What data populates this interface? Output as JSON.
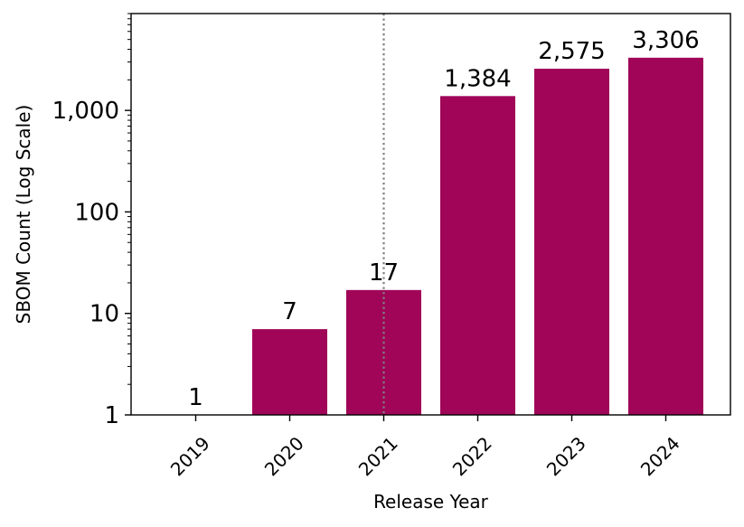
{
  "chart_data": {
    "type": "bar",
    "categories": [
      "2019",
      "2020",
      "2021",
      "2022",
      "2023",
      "2024"
    ],
    "values": [
      1,
      7,
      17,
      1384,
      2575,
      3306
    ],
    "value_labels": [
      "1",
      "7",
      "17",
      "1,384",
      "2,575",
      "3,306"
    ],
    "xlabel": "Release Year",
    "ylabel": "SBOM Count (Log Scale)",
    "y_scale": "log",
    "ylim": [
      1,
      9000
    ],
    "y_ticks": [
      {
        "value": 1,
        "label": "1"
      },
      {
        "value": 10,
        "label": "10"
      },
      {
        "value": 100,
        "label": "100"
      },
      {
        "value": 1000,
        "label": "1,000"
      }
    ],
    "reference_line": {
      "x": "2021",
      "style": "dotted",
      "color": "#808080"
    },
    "bar_color": "#a00558",
    "grid": false,
    "legend": "none"
  }
}
